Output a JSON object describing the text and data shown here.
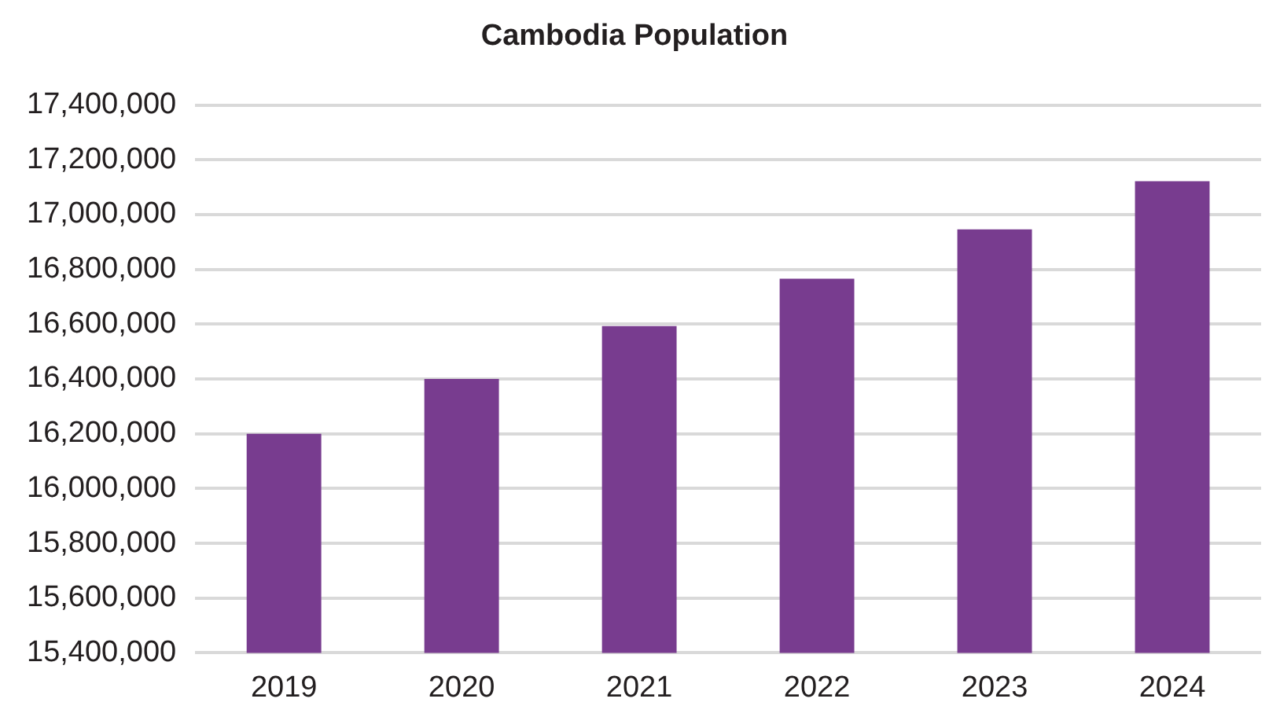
{
  "chart_data": {
    "type": "bar",
    "title": "Cambodia Population",
    "categories": [
      "2019",
      "2020",
      "2021",
      "2022",
      "2023",
      "2024"
    ],
    "values": [
      16200000,
      16400000,
      16593000,
      16766000,
      16946000,
      17122000
    ],
    "color": "#783c8f",
    "ylim": [
      15400000,
      17400000
    ],
    "yticks": [
      {
        "value": 15400000,
        "label": "15,400,000"
      },
      {
        "value": 15600000,
        "label": "15,600,000"
      },
      {
        "value": 15800000,
        "label": "15,800,000"
      },
      {
        "value": 16000000,
        "label": "16,000,000"
      },
      {
        "value": 16200000,
        "label": "16,200,000"
      },
      {
        "value": 16400000,
        "label": "16,400,000"
      },
      {
        "value": 16600000,
        "label": "16,600,000"
      },
      {
        "value": 16800000,
        "label": "16,800,000"
      },
      {
        "value": 17000000,
        "label": "17,000,000"
      },
      {
        "value": 17200000,
        "label": "17,200,000"
      },
      {
        "value": 17400000,
        "label": "17,400,000"
      }
    ],
    "grid": "y",
    "legend": false
  }
}
